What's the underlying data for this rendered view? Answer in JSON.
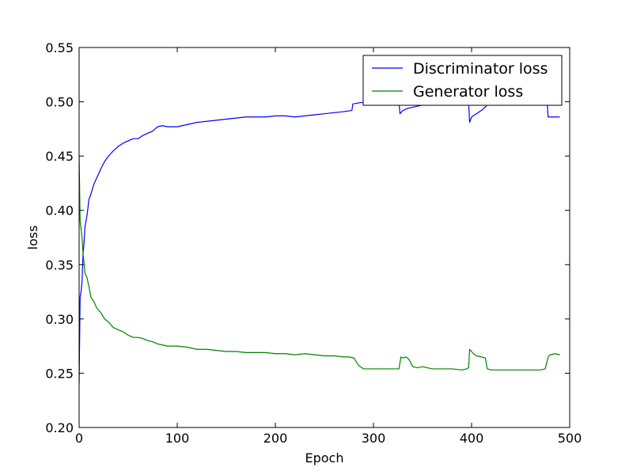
{
  "chart_data": {
    "type": "line",
    "title": "",
    "xlabel": "Epoch",
    "ylabel": "loss",
    "xlim": [
      0,
      500
    ],
    "ylim": [
      0.2,
      0.55
    ],
    "xticks": [
      0,
      100,
      200,
      300,
      400,
      500
    ],
    "xtick_labels": [
      "0",
      "100",
      "200",
      "300",
      "400",
      "500"
    ],
    "yticks": [
      0.2,
      0.25,
      0.3,
      0.35,
      0.4,
      0.45,
      0.5,
      0.55
    ],
    "ytick_labels": [
      "0.20",
      "0.25",
      "0.30",
      "0.35",
      "0.40",
      "0.45",
      "0.50",
      "0.55"
    ],
    "grid": false,
    "legend_position": "top-right",
    "series": [
      {
        "name": "Discriminator loss",
        "color": "#0000ff",
        "x": [
          0,
          1,
          2,
          3,
          4,
          5,
          6,
          8,
          10,
          12,
          15,
          18,
          22,
          26,
          30,
          35,
          40,
          45,
          50,
          55,
          60,
          65,
          70,
          75,
          80,
          85,
          90,
          95,
          100,
          110,
          120,
          130,
          140,
          150,
          160,
          170,
          180,
          190,
          200,
          210,
          220,
          230,
          240,
          250,
          260,
          270,
          278,
          279,
          285,
          295,
          300,
          310,
          320,
          326,
          327,
          328,
          330,
          335,
          340,
          345,
          350,
          355,
          360,
          370,
          380,
          390,
          395,
          396,
          397,
          398,
          400,
          405,
          410,
          415,
          416,
          420,
          430,
          440,
          450,
          460,
          470,
          475,
          476,
          477,
          478,
          480,
          485,
          490
        ],
        "y": [
          0.24,
          0.32,
          0.325,
          0.335,
          0.36,
          0.37,
          0.385,
          0.395,
          0.41,
          0.415,
          0.424,
          0.43,
          0.438,
          0.445,
          0.45,
          0.455,
          0.459,
          0.462,
          0.464,
          0.466,
          0.466,
          0.469,
          0.471,
          0.473,
          0.477,
          0.478,
          0.477,
          0.477,
          0.477,
          0.479,
          0.481,
          0.482,
          0.483,
          0.484,
          0.485,
          0.486,
          0.486,
          0.486,
          0.487,
          0.487,
          0.486,
          0.487,
          0.488,
          0.489,
          0.49,
          0.491,
          0.492,
          0.498,
          0.499,
          0.5,
          0.5,
          0.5,
          0.5,
          0.5,
          0.489,
          0.49,
          0.492,
          0.494,
          0.495,
          0.496,
          0.497,
          0.498,
          0.499,
          0.5,
          0.5,
          0.5,
          0.5,
          0.5,
          0.5,
          0.481,
          0.486,
          0.489,
          0.492,
          0.496,
          0.5,
          0.5,
          0.5,
          0.5,
          0.5,
          0.5,
          0.5,
          0.5,
          0.5,
          0.5,
          0.486,
          0.486,
          0.486,
          0.486
        ]
      },
      {
        "name": "Generator loss",
        "color": "#008000",
        "x": [
          0,
          1,
          2,
          3,
          4,
          5,
          6,
          8,
          10,
          12,
          15,
          18,
          22,
          26,
          30,
          35,
          40,
          45,
          50,
          55,
          60,
          65,
          70,
          75,
          80,
          85,
          90,
          95,
          100,
          110,
          120,
          130,
          140,
          150,
          160,
          170,
          180,
          190,
          200,
          210,
          220,
          230,
          240,
          250,
          260,
          270,
          275,
          280,
          285,
          290,
          300,
          310,
          320,
          326,
          328,
          330,
          333,
          336,
          340,
          345,
          350,
          355,
          360,
          370,
          380,
          390,
          395,
          397,
          398,
          400,
          402,
          405,
          410,
          414,
          416,
          420,
          430,
          440,
          450,
          460,
          470,
          475,
          478,
          480,
          485,
          490
        ],
        "y": [
          0.45,
          0.39,
          0.383,
          0.375,
          0.36,
          0.352,
          0.342,
          0.338,
          0.33,
          0.32,
          0.316,
          0.31,
          0.306,
          0.3,
          0.297,
          0.292,
          0.29,
          0.288,
          0.285,
          0.283,
          0.283,
          0.282,
          0.28,
          0.279,
          0.277,
          0.276,
          0.275,
          0.275,
          0.275,
          0.274,
          0.272,
          0.272,
          0.271,
          0.27,
          0.27,
          0.269,
          0.269,
          0.269,
          0.268,
          0.268,
          0.267,
          0.268,
          0.267,
          0.266,
          0.266,
          0.265,
          0.265,
          0.264,
          0.257,
          0.254,
          0.254,
          0.254,
          0.254,
          0.254,
          0.265,
          0.264,
          0.265,
          0.263,
          0.256,
          0.255,
          0.256,
          0.255,
          0.254,
          0.254,
          0.254,
          0.253,
          0.254,
          0.255,
          0.272,
          0.27,
          0.268,
          0.266,
          0.265,
          0.264,
          0.254,
          0.253,
          0.253,
          0.253,
          0.253,
          0.253,
          0.253,
          0.254,
          0.265,
          0.267,
          0.268,
          0.267
        ]
      }
    ]
  }
}
